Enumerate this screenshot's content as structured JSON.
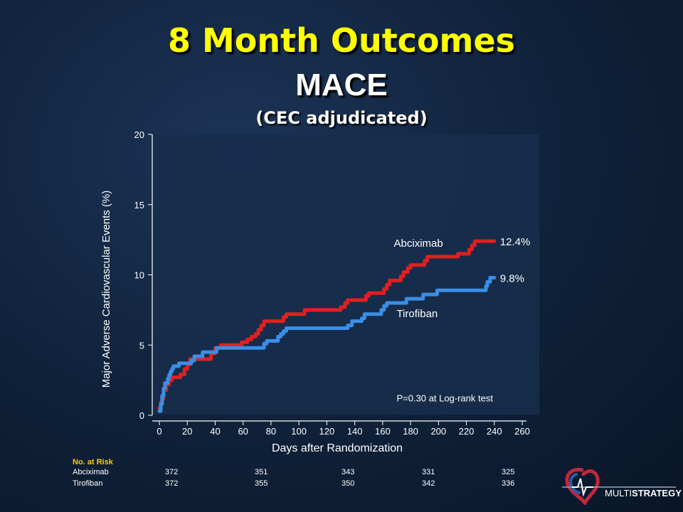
{
  "slide": {
    "title": "8 Month Outcomes",
    "subtitle": "MACE",
    "note": "(CEC adjudicated)"
  },
  "chart_data": {
    "type": "line",
    "xlabel": "Days after Randomization",
    "ylabel": "Major Adverse Cardiovascular Events (%)",
    "xlim": [
      0,
      260
    ],
    "ylim": [
      0,
      20
    ],
    "xticks": [
      0,
      20,
      40,
      60,
      80,
      100,
      120,
      140,
      160,
      180,
      200,
      220,
      240,
      260
    ],
    "yticks": [
      0,
      5,
      10,
      15,
      20
    ],
    "grid": false,
    "annotation": "P=0.30 at Log-rank test",
    "series": [
      {
        "name": "Abciximab",
        "end_label": "12.4%",
        "color": "#e02020",
        "points": [
          [
            0,
            0.5
          ],
          [
            1,
            0.9
          ],
          [
            2,
            1.2
          ],
          [
            3,
            1.8
          ],
          [
            5,
            2.2
          ],
          [
            7,
            2.5
          ],
          [
            9,
            2.7
          ],
          [
            13,
            2.7
          ],
          [
            15,
            2.9
          ],
          [
            18,
            3.3
          ],
          [
            20,
            3.6
          ],
          [
            22,
            4.0
          ],
          [
            27,
            4.0
          ],
          [
            30,
            4.0
          ],
          [
            35,
            4.0
          ],
          [
            37,
            4.4
          ],
          [
            40,
            4.8
          ],
          [
            44,
            5.0
          ],
          [
            57,
            5.0
          ],
          [
            59,
            5.2
          ],
          [
            63,
            5.4
          ],
          [
            66,
            5.6
          ],
          [
            69,
            5.8
          ],
          [
            71,
            6.1
          ],
          [
            73,
            6.4
          ],
          [
            75,
            6.7
          ],
          [
            88,
            6.7
          ],
          [
            89,
            7.0
          ],
          [
            91,
            7.2
          ],
          [
            102,
            7.2
          ],
          [
            104,
            7.5
          ],
          [
            128,
            7.5
          ],
          [
            130,
            7.7
          ],
          [
            133,
            8.0
          ],
          [
            135,
            8.2
          ],
          [
            146,
            8.2
          ],
          [
            148,
            8.5
          ],
          [
            150,
            8.7
          ],
          [
            160,
            8.7
          ],
          [
            161,
            9.0
          ],
          [
            163,
            9.3
          ],
          [
            165,
            9.6
          ],
          [
            172,
            9.6
          ],
          [
            173,
            9.9
          ],
          [
            175,
            10.2
          ],
          [
            178,
            10.5
          ],
          [
            180,
            10.7
          ],
          [
            188,
            10.7
          ],
          [
            190,
            11.0
          ],
          [
            192,
            11.3
          ],
          [
            212,
            11.3
          ],
          [
            214,
            11.5
          ],
          [
            220,
            11.5
          ],
          [
            222,
            11.8
          ],
          [
            224,
            12.1
          ],
          [
            226,
            12.4
          ],
          [
            240,
            12.4
          ]
        ]
      },
      {
        "name": "Tirofiban",
        "end_label": "9.8%",
        "color": "#3a8ee6",
        "points": [
          [
            0,
            0.3
          ],
          [
            1,
            0.8
          ],
          [
            2,
            1.4
          ],
          [
            3,
            1.9
          ],
          [
            4,
            2.3
          ],
          [
            6,
            2.6
          ],
          [
            7,
            2.9
          ],
          [
            8,
            3.1
          ],
          [
            9,
            3.3
          ],
          [
            10,
            3.5
          ],
          [
            13,
            3.5
          ],
          [
            14,
            3.7
          ],
          [
            22,
            3.7
          ],
          [
            23,
            3.9
          ],
          [
            25,
            4.2
          ],
          [
            30,
            4.2
          ],
          [
            31,
            4.5
          ],
          [
            40,
            4.5
          ],
          [
            41,
            4.8
          ],
          [
            73,
            4.8
          ],
          [
            75,
            5.1
          ],
          [
            77,
            5.3
          ],
          [
            83,
            5.3
          ],
          [
            85,
            5.6
          ],
          [
            87,
            5.8
          ],
          [
            89,
            6.0
          ],
          [
            91,
            6.2
          ],
          [
            133,
            6.2
          ],
          [
            135,
            6.4
          ],
          [
            138,
            6.7
          ],
          [
            143,
            6.7
          ],
          [
            145,
            6.9
          ],
          [
            147,
            7.2
          ],
          [
            157,
            7.2
          ],
          [
            159,
            7.5
          ],
          [
            161,
            7.8
          ],
          [
            163,
            8.0
          ],
          [
            175,
            8.0
          ],
          [
            177,
            8.3
          ],
          [
            187,
            8.3
          ],
          [
            189,
            8.6
          ],
          [
            197,
            8.6
          ],
          [
            199,
            8.9
          ],
          [
            232,
            8.9
          ],
          [
            234,
            9.2
          ],
          [
            235,
            9.5
          ],
          [
            237,
            9.8
          ],
          [
            240,
            9.8
          ]
        ]
      }
    ]
  },
  "risk_table": {
    "title": "No. at Risk",
    "rows": [
      {
        "label": "Abciximab",
        "values": [
          "372",
          "351",
          "343",
          "331",
          "325"
        ]
      },
      {
        "label": "Tirofiban",
        "values": [
          "372",
          "355",
          "350",
          "342",
          "336"
        ]
      }
    ]
  },
  "logo": {
    "prefix": "MULTI",
    "suffix": "STRATEGY"
  }
}
